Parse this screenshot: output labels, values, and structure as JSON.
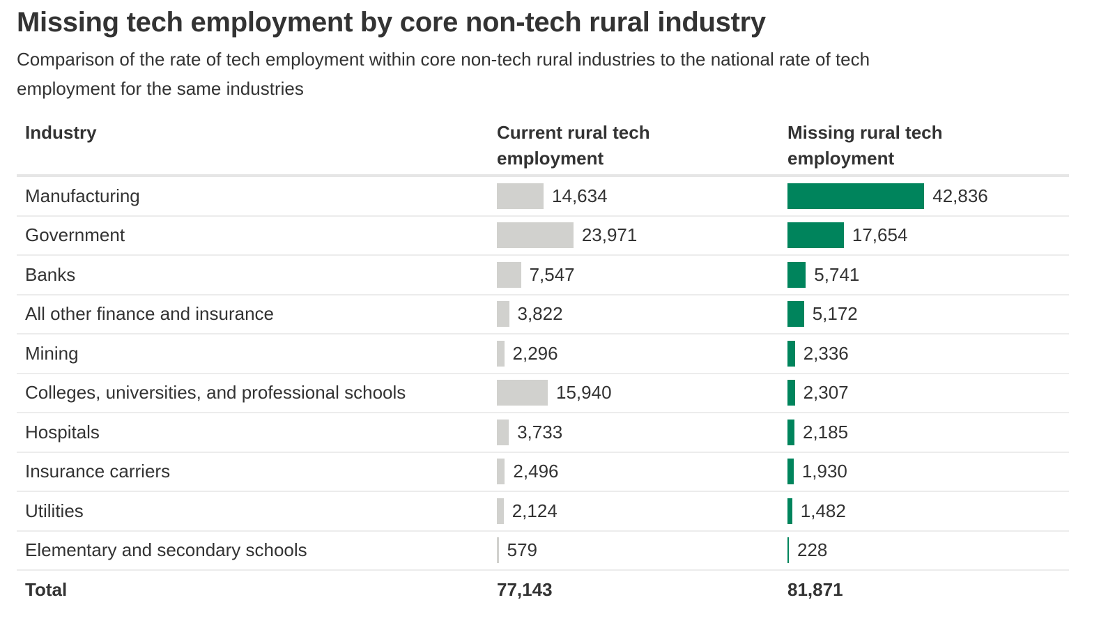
{
  "chart_data": {
    "type": "table",
    "title": "Missing tech employment by core non-tech rural industry",
    "subtitle": "Comparison of the rate of tech employment within core non-tech rural industries to the national rate of tech employment for the same industries",
    "columns": [
      "Industry",
      "Current rural tech employment",
      "Missing rural tech employment"
    ],
    "rows": [
      {
        "industry": "Manufacturing",
        "current": 14634,
        "current_label": "14,634",
        "missing": 42836,
        "missing_label": "42,836"
      },
      {
        "industry": "Government",
        "current": 23971,
        "current_label": "23,971",
        "missing": 17654,
        "missing_label": "17,654"
      },
      {
        "industry": "Banks",
        "current": 7547,
        "current_label": "7,547",
        "missing": 5741,
        "missing_label": "5,741"
      },
      {
        "industry": "All other finance and insurance",
        "current": 3822,
        "current_label": "3,822",
        "missing": 5172,
        "missing_label": "5,172"
      },
      {
        "industry": "Mining",
        "current": 2296,
        "current_label": "2,296",
        "missing": 2336,
        "missing_label": "2,336"
      },
      {
        "industry": "Colleges, universities, and professional schools",
        "current": 15940,
        "current_label": "15,940",
        "missing": 2307,
        "missing_label": "2,307"
      },
      {
        "industry": "Hospitals",
        "current": 3733,
        "current_label": "3,733",
        "missing": 2185,
        "missing_label": "2,185"
      },
      {
        "industry": "Insurance carriers",
        "current": 2496,
        "current_label": "2,496",
        "missing": 1930,
        "missing_label": "1,930"
      },
      {
        "industry": "Utilities",
        "current": 2124,
        "current_label": "2,124",
        "missing": 1482,
        "missing_label": "1,482"
      },
      {
        "industry": "Elementary and secondary schools",
        "current": 579,
        "current_label": "579",
        "missing": 228,
        "missing_label": "228"
      }
    ],
    "total": {
      "label": "Total",
      "current": 77143,
      "current_label": "77,143",
      "missing": 81871,
      "missing_label": "81,871"
    },
    "bar_max": 43000,
    "colors": {
      "current": "#d1d1ce",
      "missing": "#00845c"
    }
  }
}
